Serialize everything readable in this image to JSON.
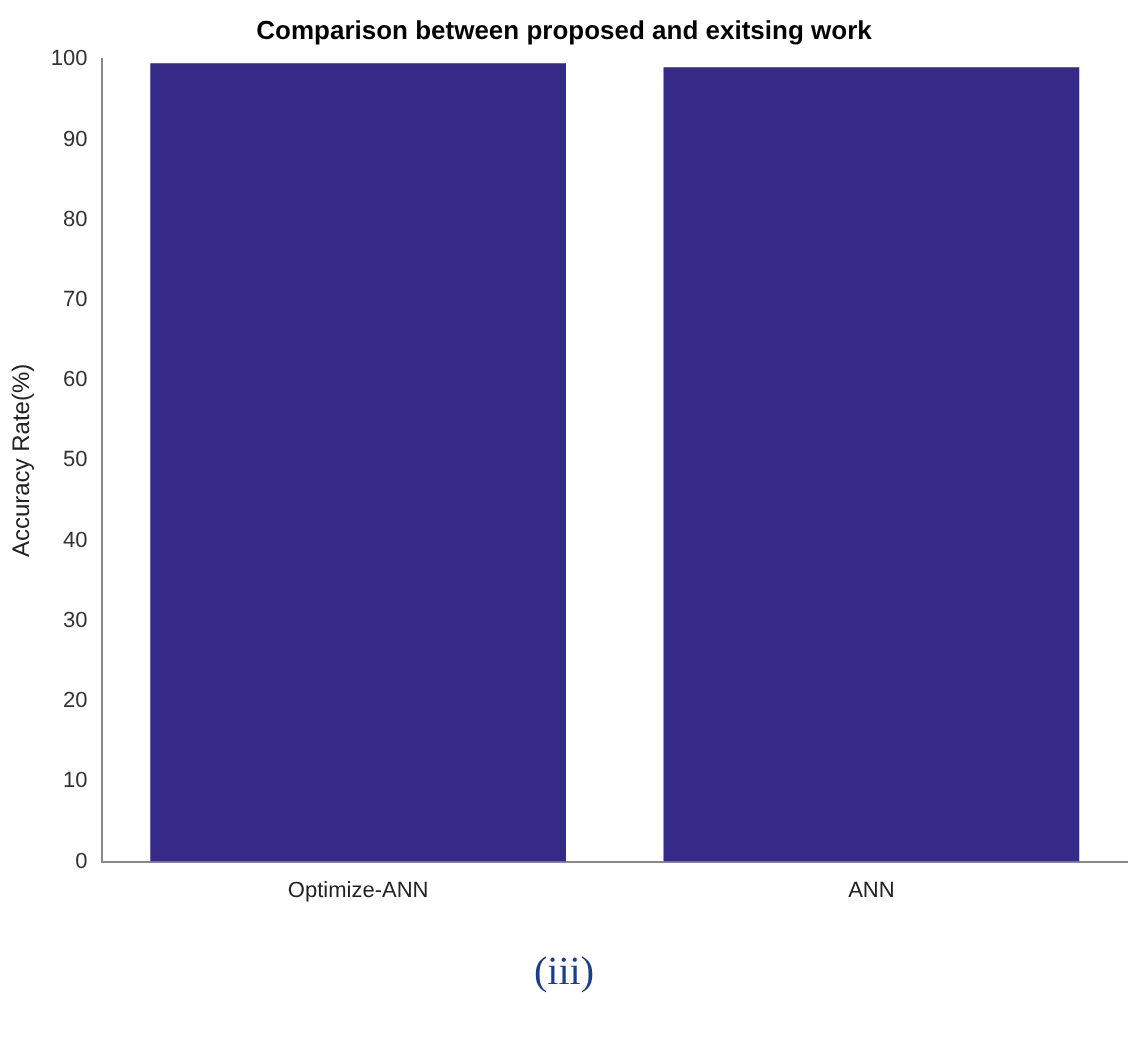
{
  "chart_data": {
    "type": "bar",
    "title": "Comparison between proposed and exitsing work",
    "ylabel": "Accuracy Rate(%)",
    "categories": [
      "Optimize-ANN",
      "ANN"
    ],
    "values": [
      99.5,
      99
    ],
    "color": "#352a87",
    "ylim": [
      0,
      100
    ],
    "yticks": [
      0,
      10,
      20,
      30,
      40,
      50,
      60,
      70,
      80,
      90,
      100
    ],
    "grid": false,
    "annotations": [
      "(iii)"
    ]
  }
}
